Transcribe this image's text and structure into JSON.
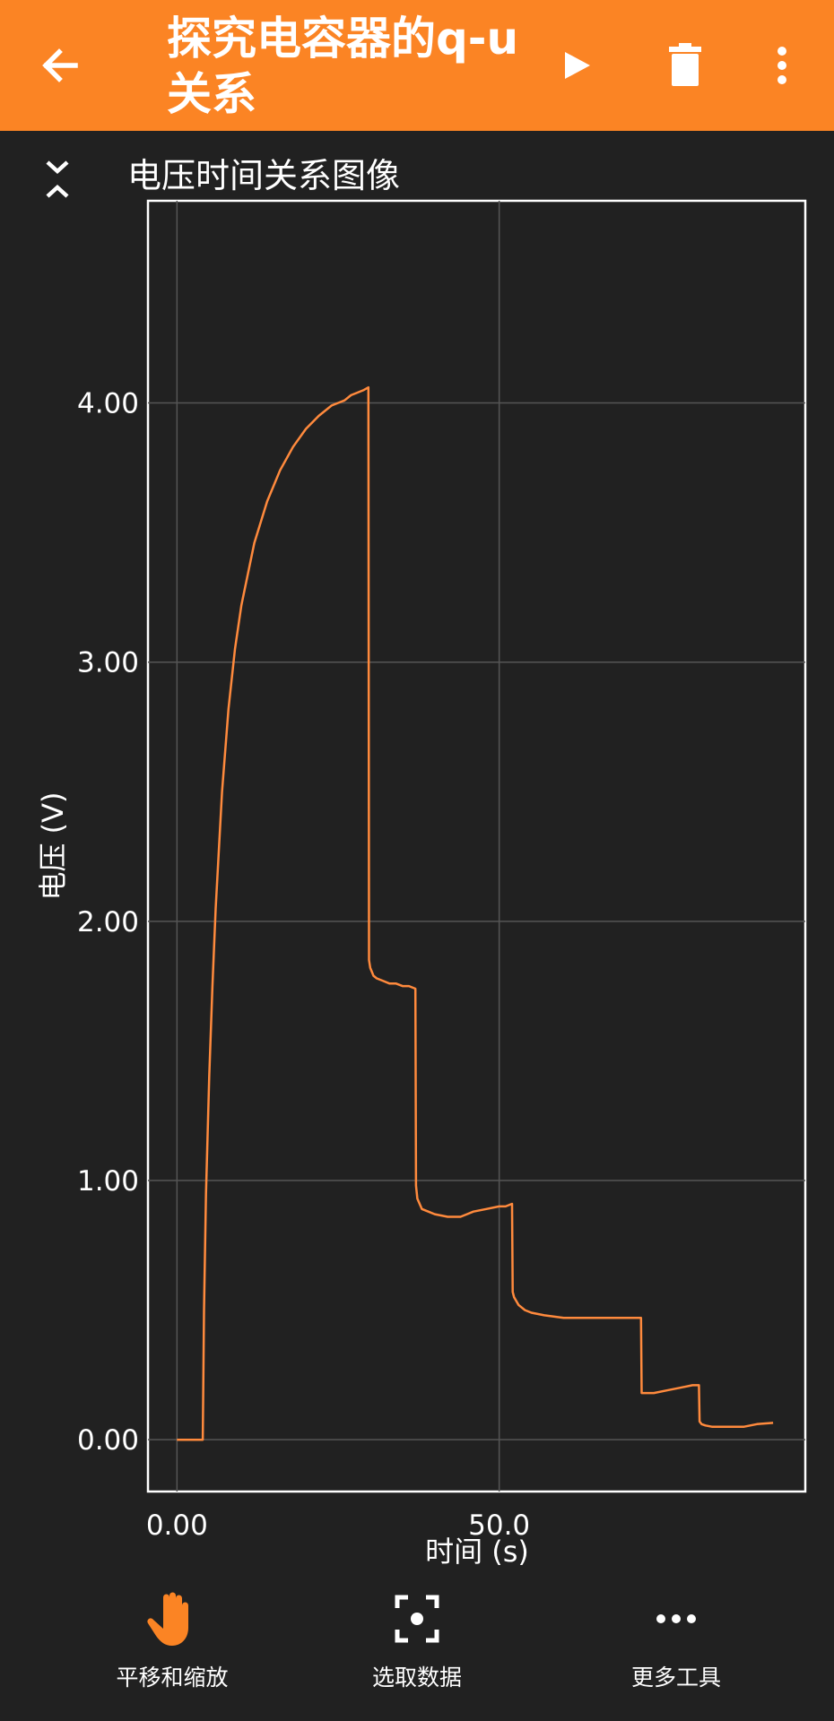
{
  "app_bar": {
    "title": "探究电容器的q-u 关系",
    "back_icon": "arrow-left-icon",
    "play_icon": "play-icon",
    "delete_icon": "trash-icon",
    "more_icon": "more-vert-icon",
    "background": "#fb8424"
  },
  "panel": {
    "title": "电压时间关系图像",
    "collapse_icon": "collapse-icon"
  },
  "chart_data": {
    "type": "line",
    "xlabel": "时间 (s)",
    "ylabel": "电压 (V)",
    "xlim": [
      -4.5,
      97.5
    ],
    "ylim": [
      -0.2,
      4.78
    ],
    "x_ticks": [
      "0.00",
      "50.0"
    ],
    "x_tick_values": [
      0,
      50
    ],
    "y_ticks": [
      "0.00",
      "1.00",
      "2.00",
      "3.00",
      "4.00"
    ],
    "y_tick_values": [
      0,
      1,
      2,
      3,
      4
    ],
    "grid": true,
    "color": "#ff8a3d",
    "series": [
      {
        "x": [
          0,
          4.0,
          4.2,
          4.5,
          5,
          5.5,
          6,
          7,
          8,
          9,
          10,
          12,
          14,
          16,
          18,
          20,
          22,
          24,
          26,
          27,
          28,
          29,
          29.7,
          29.8,
          30.0,
          30.5,
          31,
          32,
          33,
          34,
          35,
          36,
          37,
          37.1,
          37.3,
          38,
          39,
          40,
          42,
          44,
          45,
          46,
          48,
          50,
          51,
          52,
          52.1,
          52.3,
          53,
          54,
          55,
          57,
          60,
          63,
          66,
          69,
          71,
          72,
          72.1,
          72.4,
          74,
          76,
          78,
          80,
          81,
          81.1,
          81.4,
          82,
          83,
          85,
          88,
          90,
          92.5
        ],
        "y": [
          0,
          0,
          0.5,
          0.95,
          1.4,
          1.75,
          2.05,
          2.5,
          2.82,
          3.05,
          3.22,
          3.46,
          3.62,
          3.74,
          3.83,
          3.9,
          3.95,
          3.99,
          4.01,
          4.03,
          4.04,
          4.05,
          4.06,
          1.85,
          1.82,
          1.79,
          1.78,
          1.77,
          1.76,
          1.76,
          1.75,
          1.75,
          1.74,
          0.98,
          0.93,
          0.89,
          0.88,
          0.87,
          0.86,
          0.86,
          0.87,
          0.88,
          0.89,
          0.9,
          0.9,
          0.91,
          0.57,
          0.55,
          0.52,
          0.5,
          0.49,
          0.48,
          0.47,
          0.47,
          0.47,
          0.47,
          0.47,
          0.47,
          0.18,
          0.18,
          0.18,
          0.19,
          0.2,
          0.21,
          0.21,
          0.07,
          0.06,
          0.055,
          0.05,
          0.05,
          0.05,
          0.06,
          0.065
        ]
      }
    ]
  },
  "bottom_nav": {
    "items": [
      {
        "label": "平移和缩放",
        "icon": "hand-icon",
        "active": true
      },
      {
        "label": "选取数据",
        "icon": "select-data-icon",
        "active": false
      },
      {
        "label": "更多工具",
        "icon": "more-horiz-icon",
        "active": false
      }
    ]
  }
}
